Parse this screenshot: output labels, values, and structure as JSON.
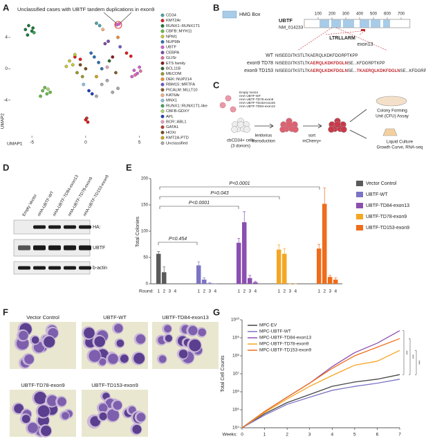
{
  "panel_labels": [
    "A",
    "B",
    "C",
    "D",
    "E",
    "F",
    "G"
  ],
  "chart_data": [
    {
      "type": "scatter",
      "title": "Unclassified cases with UBTF tandem duplications in exon9",
      "x_label": "UMAP1",
      "y_label": "UMAP2",
      "xlim": [
        -7,
        6.5
      ],
      "ylim": [
        -8,
        7
      ],
      "xticks": [
        -5,
        0,
        5
      ],
      "yticks": [
        4,
        0,
        -4
      ],
      "series": [
        {
          "name": "CD34",
          "color": "#4aa3a3",
          "x": [
            1.0,
            1.3
          ],
          "y": [
            5.8,
            5.5
          ]
        },
        {
          "name": "KMT2Ar",
          "color": "#e31a1c",
          "x": [
            -1.0,
            -0.5,
            3.8,
            4.2,
            0.0,
            0.2
          ],
          "y": [
            1.5,
            1.2,
            2.0,
            1.6,
            -6.5,
            -6.8
          ]
        },
        {
          "name": "RUNX1::RUNX1T1",
          "color": "#1a7a3a",
          "x": [
            -5.3,
            -5.6,
            -5.0,
            -5.4,
            -4.9
          ],
          "y": [
            5.5,
            5.0,
            4.8,
            4.3,
            5.2
          ]
        },
        {
          "name": "CBFB::MYH11",
          "color": "#66bb44",
          "x": [
            -4.0,
            -3.6,
            -4.2,
            -3.8,
            -3.3
          ],
          "y": [
            -2.8,
            -3.2,
            -3.5,
            -2.4,
            -3.0
          ]
        },
        {
          "name": "NPM1",
          "color": "#c8c83a",
          "x": [
            -1.5,
            -1.2,
            -1.8,
            -1.0
          ],
          "y": [
            1.0,
            0.5,
            0.3,
            1.8
          ]
        },
        {
          "name": "NUP98r",
          "color": "#2c6fb3",
          "x": [
            0.5,
            0.8,
            1.2,
            1.5
          ],
          "y": [
            2.0,
            1.5,
            0.8,
            0.0
          ]
        },
        {
          "name": "UBTF",
          "color": "#d45fd0",
          "x": [
            4.5,
            4.8,
            5.0,
            4.3,
            2.9,
            3.1
          ],
          "y": [
            -0.2,
            -0.6,
            0.2,
            -1.0,
            5.6,
            5.7
          ]
        },
        {
          "name": "CEBPA",
          "color": "#7b4aa8",
          "x": [
            1.8,
            2.1
          ],
          "y": [
            3.2,
            3.5
          ]
        },
        {
          "name": "GLISr",
          "color": "#e36fa0",
          "x": [
            4.6,
            5.1
          ],
          "y": [
            -0.8,
            -0.3
          ]
        },
        {
          "name": "ETS family",
          "color": "#8b1a1a",
          "x": [
            2.5
          ],
          "y": [
            1.5
          ]
        },
        {
          "name": "BCL11B",
          "color": "#2d6a2d",
          "x": [
            2.2
          ],
          "y": [
            1.0
          ]
        },
        {
          "name": "MECOM",
          "color": "#9a9a2a",
          "x": [
            -0.8,
            -0.3
          ],
          "y": [
            -0.5,
            -1.0
          ]
        },
        {
          "name": "DEK::NUP214",
          "color": "#f28e2b",
          "x": [
            3.0
          ],
          "y": [
            4.0
          ]
        },
        {
          "name": "RBM15::MRTFA",
          "color": "#6a5acd",
          "x": [
            3.2
          ],
          "y": [
            2.8
          ]
        },
        {
          "name": "PICALM::MLLT10",
          "color": "#8c5a2b",
          "x": [
            2.8
          ],
          "y": [
            -0.5
          ]
        },
        {
          "name": "KAT6Ar",
          "color": "#f4b183",
          "x": [
            1.6
          ],
          "y": [
            5.0
          ]
        },
        {
          "name": "MNX1",
          "color": "#88c0e8",
          "x": [
            -0.2
          ],
          "y": [
            -2.0
          ]
        },
        {
          "name": "RUNX1::RUNX1T1-like",
          "color": "#3ea35a",
          "x": [
            -4.8
          ],
          "y": [
            4.6
          ]
        },
        {
          "name": "CBFB-GDXY",
          "color": "#a6d96a",
          "x": [
            -3.5
          ],
          "y": [
            -2.6
          ]
        },
        {
          "name": "APL",
          "color": "#1f3fbf",
          "x": [
            0.3,
            0.6
          ],
          "y": [
            -2.8,
            -3.2
          ]
        },
        {
          "name": "BCR::ABL1",
          "color": "#e8a0c0",
          "x": [
            2.0
          ],
          "y": [
            0.2
          ]
        },
        {
          "name": "GATA1",
          "color": "#c0392b",
          "x": [
            0.1
          ],
          "y": [
            -6.3
          ]
        },
        {
          "name": "HOXr",
          "color": "#7a4a1a",
          "x": [
            -0.5,
            0.0
          ],
          "y": [
            0.5,
            0.0
          ]
        },
        {
          "name": "KMT2A-PTD",
          "color": "#d4a017",
          "x": [
            1.0
          ],
          "y": [
            -1.0
          ]
        },
        {
          "name": "Unclassified",
          "color": "#aaaaaa",
          "x": [
            1.5,
            2.0,
            3.0,
            2.5,
            1.0
          ],
          "y": [
            -2.0,
            -1.5,
            -2.5,
            -3.0,
            -3.5
          ]
        }
      ]
    },
    {
      "type": "bar",
      "y_label": "Total Colonies",
      "x_label": "Round:",
      "categories": [
        "1",
        "2",
        "3",
        "4"
      ],
      "ylim": [
        0,
        200
      ],
      "yticks": [
        0,
        50,
        100,
        150,
        200
      ],
      "series": [
        {
          "name": "Vector Control",
          "color": "#5a5a5a",
          "values": [
            57,
            22,
            0,
            0
          ],
          "errors": [
            4,
            10,
            0,
            0
          ]
        },
        {
          "name": "UBTF-WT",
          "color": "#7b74c4",
          "values": [
            35,
            8,
            1,
            0
          ],
          "errors": [
            7,
            3,
            1,
            0
          ]
        },
        {
          "name": "UBTF-TD84-exon13",
          "color": "#8a4fb0",
          "values": [
            78,
            117,
            11,
            3
          ],
          "errors": [
            8,
            20,
            5,
            2
          ]
        },
        {
          "name": "UBTF-TD78-exon9",
          "color": "#f5a623",
          "values": [
            65,
            57,
            0,
            0
          ],
          "errors": [
            9,
            10,
            0,
            0
          ]
        },
        {
          "name": "UBTF-TD153-exon9",
          "color": "#ef6c1a",
          "values": [
            67,
            152,
            13,
            8
          ],
          "errors": [
            8,
            30,
            3,
            3
          ]
        }
      ],
      "annotations": [
        "P=0.454",
        "P<0.0001",
        "P=0.043",
        "P<0.0001"
      ]
    },
    {
      "type": "line",
      "y_label": "Total Cell Counts",
      "x_label": "Weeks:",
      "x": [
        0,
        1,
        2,
        3,
        4,
        5,
        6,
        7
      ],
      "xlim": [
        0,
        7
      ],
      "xticks": [
        0,
        1,
        2,
        3,
        4,
        5,
        6,
        7
      ],
      "log_y": true,
      "ylim": [
        10000,
        10000000000
      ],
      "yticks": [
        {
          "value": 10000,
          "label": "10⁴"
        },
        {
          "value": 100000,
          "label": "10⁵"
        },
        {
          "value": 1000000,
          "label": "10⁶"
        },
        {
          "value": 10000000,
          "label": "10⁷"
        },
        {
          "value": 100000000,
          "label": "10⁸"
        },
        {
          "value": 1000000000,
          "label": "10⁹"
        },
        {
          "value": 10000000000,
          "label": "10¹⁰"
        }
      ],
      "series": [
        {
          "name": "MPC-EV",
          "color": "#444444",
          "values": [
            10000,
            60000,
            250000,
            700000,
            2000000,
            3500000,
            5000000,
            9000000
          ]
        },
        {
          "name": "MPC-UBTF-WT",
          "color": "#7b74c4",
          "values": [
            10000,
            50000,
            200000,
            500000,
            1200000,
            2000000,
            3000000,
            5000000
          ]
        },
        {
          "name": "MPC-UBTF-TD84-exon13",
          "color": "#8a4fb0",
          "values": [
            10000,
            80000,
            500000,
            3000000,
            25000000,
            150000000,
            500000000,
            2500000000
          ]
        },
        {
          "name": "MPC-UBTF-TD78-exon9",
          "color": "#f5a623",
          "values": [
            10000,
            70000,
            400000,
            2000000,
            8000000,
            30000000,
            50000000,
            200000000
          ]
        },
        {
          "name": "MPC-UBTF-TD153-exon9",
          "color": "#ef6c1a",
          "values": [
            10000,
            80000,
            500000,
            3000000,
            20000000,
            100000000,
            300000000,
            900000000
          ]
        }
      ],
      "annotations": [
        "***",
        "***",
        "***"
      ]
    }
  ],
  "panel_B": {
    "legend_label": "HMG Box",
    "gene": "UBTF",
    "transcript": "NM_014233",
    "xlim": [
      0,
      800
    ],
    "ruler_ticks": [
      100,
      200,
      300,
      400,
      500,
      600,
      700
    ],
    "motif": "LTRLLARM",
    "exon_label": "exon13",
    "sequences": [
      {
        "label": "WT",
        "parts": [
          {
            "text": "NISEEGITKSTLTKAERQLKDKFDGRPTKPP",
            "highlight": false
          }
        ]
      },
      {
        "label": "exon9 TD78",
        "parts": [
          {
            "text": "NISEEGITKSTLTK",
            "highlight": false
          },
          {
            "text": "AERQLKDKFDGLN",
            "highlight": true
          },
          {
            "text": "SE...KFDGRPTKPP",
            "highlight": false
          }
        ]
      },
      {
        "label": "exon9 TD153",
        "parts": [
          {
            "text": "NISEEGITKSTLTK",
            "highlight": false
          },
          {
            "text": "AERQLKDKFDGLN",
            "highlight": true
          },
          {
            "text": "SE...",
            "highlight": false
          },
          {
            "text": "TKAERQLKDKFDGLN",
            "highlight": true
          },
          {
            "text": "SE...KFDGRPTKPP",
            "highlight": false
          }
        ]
      }
    ]
  },
  "panel_C": {
    "constructs": [
      "Empty Vector",
      "nHA-UBTF-WT",
      "nHA-UBTF-TD78-exon9",
      "nHA-UBTF-TD153-exon9",
      "nHA-UBTF-TD84-exon13"
    ],
    "cells": [
      "cbCD34+ cells",
      "(3 donors)"
    ],
    "step1": [
      "lentivirus",
      "transduction"
    ],
    "step2": [
      "sort",
      "mCherry+"
    ],
    "assay1": [
      "Colony Forming",
      "Unit (CFU) Assay"
    ],
    "assay2": [
      "Liquid Culture",
      "Growth Curve, RNA-seq"
    ]
  },
  "panel_D": {
    "lanes": [
      "Empty Vector",
      "nHA-UBTF-WT",
      "nHA-UBTF-TD84-exon13",
      "nHA-UBTF-TD78-exon9",
      "nHA-UBTF-TD153-exon9"
    ],
    "rows": [
      "HA:",
      "UBTF",
      "b-actin"
    ]
  },
  "panel_F": {
    "images": [
      "Vector Control",
      "UBTF-WT",
      "UBTF-TD84-exon13",
      "UBTF-TD78-exon9",
      "UBTF-TD153-exon9"
    ]
  }
}
